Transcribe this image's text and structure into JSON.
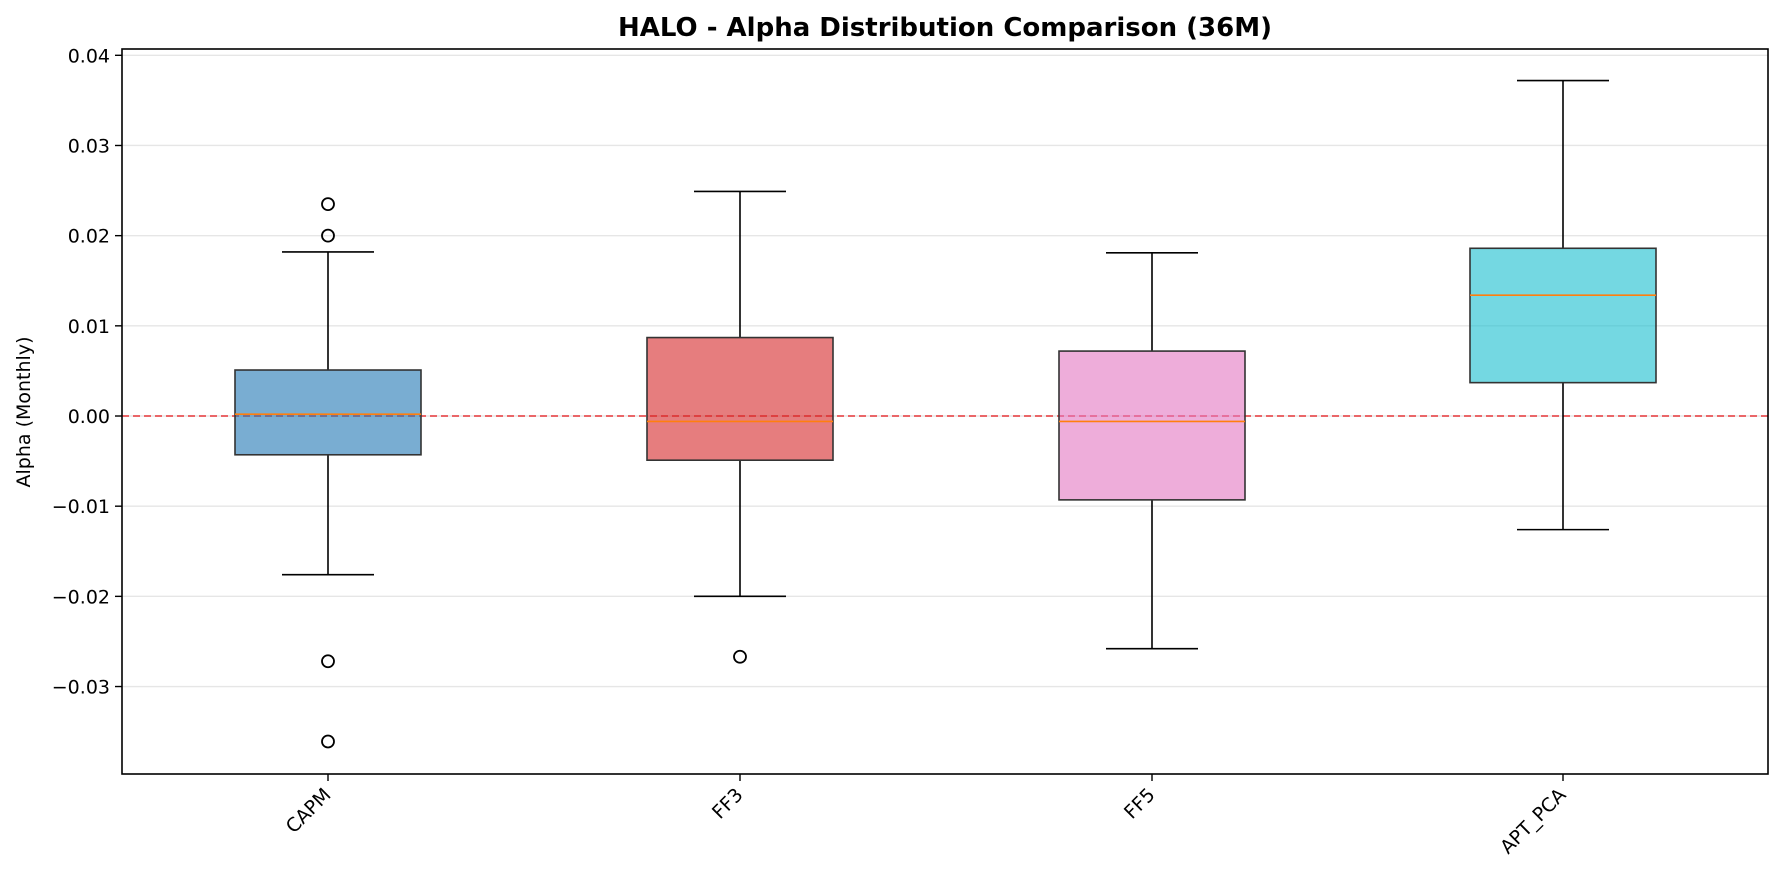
{
  "chart_data": {
    "type": "box",
    "title": "HALO - Alpha Distribution Comparison (36M)",
    "xlabel": "",
    "ylabel": "Alpha (Monthly)",
    "categories": [
      "CAPM",
      "FF3",
      "FF5",
      "APT_PCA"
    ],
    "ylim": [
      -0.0397,
      0.0407
    ],
    "yticks": [
      0.04,
      0.03,
      0.02,
      0.01,
      0.0,
      -0.01,
      -0.02,
      -0.03
    ],
    "ytick_labels": [
      "0.04",
      "0.03",
      "0.02",
      "0.01",
      "0.00",
      "−0.01",
      "−0.02",
      "−0.03"
    ],
    "grid": "y",
    "reference_line": {
      "y": 0.0,
      "style": "dashed",
      "color": "#e8191c"
    },
    "boxes": [
      {
        "category": "CAPM",
        "whisker_low": -0.0176,
        "q1": -0.0043,
        "median": 0.0002,
        "q3": 0.0051,
        "whisker_high": 0.0182,
        "outliers": [
          0.0235,
          0.02,
          -0.0272,
          -0.0361
        ],
        "color": "#1f77b4"
      },
      {
        "category": "FF3",
        "whisker_low": -0.02,
        "q1": -0.0049,
        "median": -0.0006,
        "q3": 0.0087,
        "whisker_high": 0.0249,
        "outliers": [
          -0.0267
        ],
        "color": "#d62728"
      },
      {
        "category": "FF5",
        "whisker_low": -0.0258,
        "q1": -0.0093,
        "median": -0.0006,
        "q3": 0.0072,
        "whisker_high": 0.0181,
        "outliers": [],
        "color": "#e377c2"
      },
      {
        "category": "APT_PCA",
        "whisker_low": -0.0126,
        "q1": 0.0037,
        "median": 0.0134,
        "q3": 0.0186,
        "whisker_high": 0.0372,
        "outliers": [],
        "color": "#17becf"
      }
    ],
    "median_color": "#ff7f0e"
  }
}
